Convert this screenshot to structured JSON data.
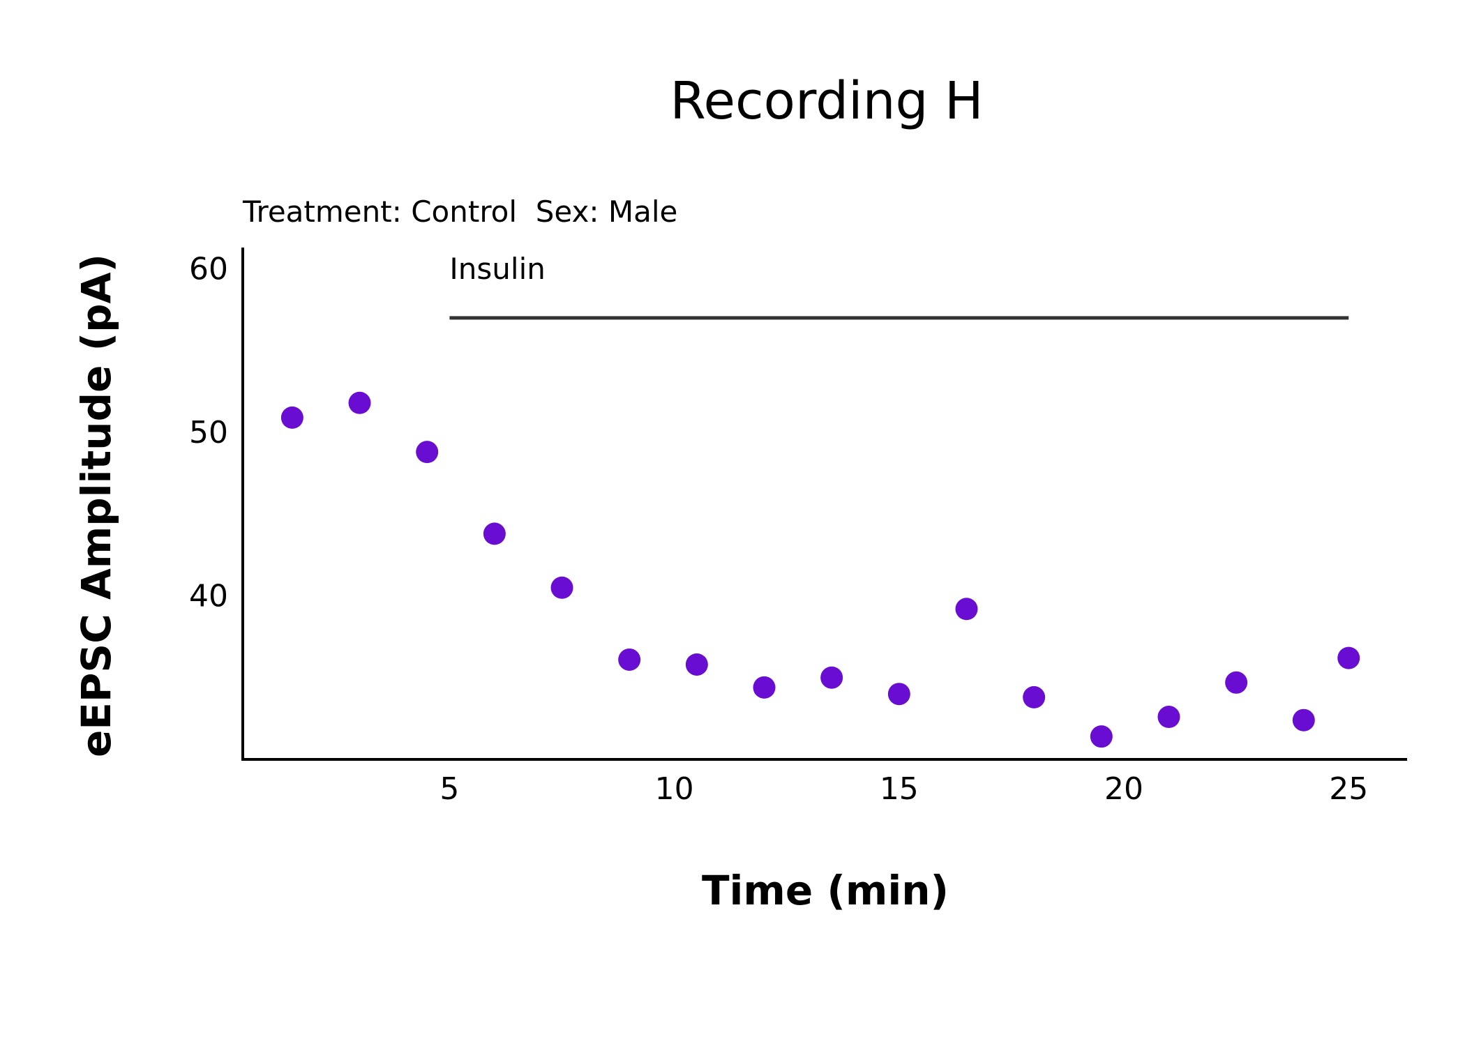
{
  "chart_data": {
    "type": "scatter",
    "title": "Recording H",
    "subtitle": "Treatment: Control  Sex: Male",
    "xlabel": "Time (min)",
    "ylabel": "eEPSC Amplitude (pA)",
    "xlim": [
      0.4,
      26.3
    ],
    "ylim": [
      30,
      61.3
    ],
    "x_ticks": [
      5,
      10,
      15,
      20,
      25
    ],
    "y_ticks": [
      40,
      50,
      60
    ],
    "grid": false,
    "point_color": "#6a0dd2",
    "series": [
      {
        "x": [
          1.5,
          3,
          4.5,
          6,
          7.5,
          9,
          10.5,
          12,
          13.5,
          15,
          16.5,
          18,
          19.5,
          21,
          22.5,
          24,
          25
        ],
        "y": [
          50.9,
          51.8,
          48.8,
          43.8,
          40.5,
          36.1,
          35.8,
          34.4,
          35.0,
          34.0,
          39.2,
          33.8,
          31.4,
          32.6,
          34.7,
          32.4,
          36.2
        ]
      }
    ],
    "annotations": [
      {
        "label": "Insulin",
        "x_start": 5,
        "x_end": 25,
        "y": 57
      }
    ]
  }
}
